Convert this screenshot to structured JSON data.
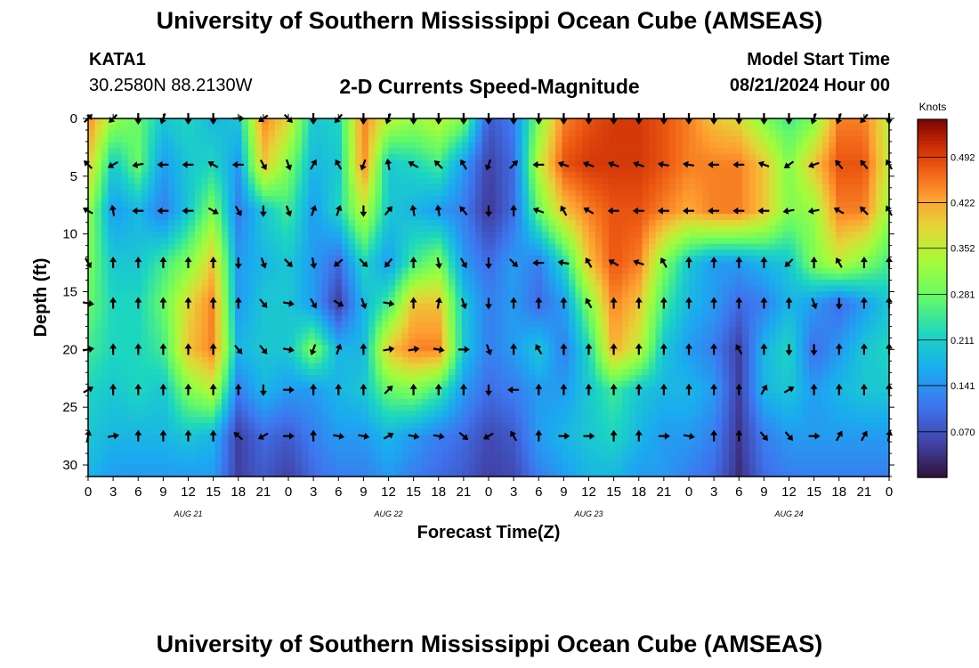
{
  "header": {
    "title": "University of Southern Mississippi Ocean Cube (AMSEAS)",
    "station_id": "KATA1",
    "coordinates": "30.2580N  88.2130W",
    "subtitle": "2-D Currents Speed-Magnitude",
    "model_start_label": "Model Start Time",
    "model_start_value": "08/21/2024 Hour 00"
  },
  "footer": {
    "title": "University of Southern Mississippi Ocean Cube (AMSEAS)"
  },
  "chart_data": {
    "type": "heatmap",
    "title": "2-D Currents Speed-Magnitude",
    "xlabel": "Forecast Time(Z)",
    "ylabel": "Depth (ft)",
    "x_range_hours": [
      0,
      96
    ],
    "ylim": [
      0,
      31
    ],
    "x_ticks": [
      "0",
      "3",
      "6",
      "9",
      "12",
      "15",
      "18",
      "21",
      "0",
      "3",
      "6",
      "9",
      "12",
      "15",
      "18",
      "21",
      "0",
      "3",
      "6",
      "9",
      "12",
      "15",
      "18",
      "21",
      "0",
      "3",
      "6",
      "9",
      "12",
      "15",
      "18",
      "21",
      "0"
    ],
    "date_labels": [
      {
        "label": "AUG 21",
        "hour": 12
      },
      {
        "label": "AUG 22",
        "hour": 36
      },
      {
        "label": "AUG 23",
        "hour": 60
      },
      {
        "label": "AUG 24",
        "hour": 84
      }
    ],
    "y_ticks": [
      0,
      5,
      10,
      15,
      20,
      25,
      30
    ],
    "colorbar": {
      "title": "Knots",
      "range": [
        0,
        0.55
      ],
      "tick_labels": [
        "0.492",
        "0.422",
        "0.352",
        "0.281",
        "0.211",
        "0.141",
        "0.070"
      ],
      "tick_values": [
        0.492,
        0.422,
        0.352,
        0.281,
        0.211,
        0.141,
        0.07
      ]
    },
    "depths_ft": [
      0,
      4,
      8,
      12.5,
      16,
      20,
      23.5,
      27.5,
      31
    ],
    "hours": [
      0,
      3,
      6,
      9,
      12,
      15,
      18,
      21,
      24,
      27,
      30,
      33,
      36,
      39,
      42,
      45,
      48,
      51,
      54,
      57,
      60,
      63,
      66,
      69,
      72,
      75,
      78,
      81,
      84,
      87,
      90,
      93,
      96
    ],
    "speed_knots": [
      [
        0.45,
        0.32,
        0.28,
        0.2,
        0.22,
        0.18,
        0.2,
        0.45,
        0.38,
        0.2,
        0.22,
        0.45,
        0.35,
        0.32,
        0.35,
        0.3,
        0.08,
        0.12,
        0.3,
        0.45,
        0.48,
        0.5,
        0.5,
        0.48,
        0.45,
        0.4,
        0.38,
        0.3,
        0.25,
        0.3,
        0.45,
        0.45,
        0.35
      ],
      [
        0.4,
        0.2,
        0.28,
        0.15,
        0.2,
        0.22,
        0.15,
        0.4,
        0.3,
        0.18,
        0.2,
        0.45,
        0.2,
        0.22,
        0.25,
        0.15,
        0.05,
        0.1,
        0.35,
        0.48,
        0.5,
        0.5,
        0.5,
        0.48,
        0.45,
        0.45,
        0.45,
        0.4,
        0.3,
        0.4,
        0.48,
        0.48,
        0.35
      ],
      [
        0.32,
        0.15,
        0.18,
        0.12,
        0.2,
        0.3,
        0.12,
        0.2,
        0.25,
        0.15,
        0.22,
        0.35,
        0.2,
        0.18,
        0.15,
        0.12,
        0.04,
        0.1,
        0.28,
        0.4,
        0.45,
        0.48,
        0.48,
        0.45,
        0.42,
        0.45,
        0.45,
        0.4,
        0.3,
        0.32,
        0.45,
        0.45,
        0.32
      ],
      [
        0.3,
        0.2,
        0.2,
        0.25,
        0.3,
        0.4,
        0.15,
        0.18,
        0.2,
        0.15,
        0.1,
        0.22,
        0.15,
        0.25,
        0.3,
        0.15,
        0.1,
        0.15,
        0.12,
        0.22,
        0.4,
        0.48,
        0.45,
        0.3,
        0.2,
        0.15,
        0.15,
        0.18,
        0.2,
        0.3,
        0.35,
        0.3,
        0.25
      ],
      [
        0.28,
        0.22,
        0.22,
        0.28,
        0.38,
        0.45,
        0.15,
        0.2,
        0.2,
        0.15,
        0.05,
        0.18,
        0.25,
        0.4,
        0.4,
        0.2,
        0.12,
        0.15,
        0.1,
        0.15,
        0.3,
        0.45,
        0.4,
        0.25,
        0.18,
        0.15,
        0.1,
        0.12,
        0.18,
        0.15,
        0.1,
        0.15,
        0.2
      ],
      [
        0.25,
        0.22,
        0.22,
        0.25,
        0.4,
        0.45,
        0.18,
        0.2,
        0.2,
        0.3,
        0.18,
        0.18,
        0.4,
        0.45,
        0.45,
        0.2,
        0.12,
        0.15,
        0.2,
        0.12,
        0.22,
        0.42,
        0.35,
        0.2,
        0.15,
        0.12,
        0.05,
        0.18,
        0.22,
        0.1,
        0.15,
        0.2,
        0.22
      ],
      [
        0.22,
        0.2,
        0.22,
        0.2,
        0.3,
        0.35,
        0.12,
        0.18,
        0.15,
        0.15,
        0.18,
        0.2,
        0.28,
        0.3,
        0.25,
        0.15,
        0.1,
        0.12,
        0.15,
        0.15,
        0.2,
        0.25,
        0.2,
        0.18,
        0.18,
        0.15,
        0.05,
        0.18,
        0.2,
        0.15,
        0.18,
        0.2,
        0.2
      ],
      [
        0.2,
        0.18,
        0.18,
        0.18,
        0.2,
        0.18,
        0.05,
        0.1,
        0.08,
        0.12,
        0.15,
        0.15,
        0.18,
        0.15,
        0.12,
        0.1,
        0.06,
        0.08,
        0.15,
        0.18,
        0.2,
        0.22,
        0.18,
        0.15,
        0.15,
        0.12,
        0.04,
        0.12,
        0.15,
        0.15,
        0.15,
        0.15,
        0.15
      ],
      [
        0.18,
        0.15,
        0.15,
        0.15,
        0.15,
        0.15,
        0.05,
        0.08,
        0.05,
        0.1,
        0.12,
        0.12,
        0.15,
        0.12,
        0.1,
        0.08,
        0.05,
        0.06,
        0.12,
        0.15,
        0.18,
        0.18,
        0.15,
        0.15,
        0.12,
        0.1,
        0.03,
        0.1,
        0.12,
        0.12,
        0.12,
        0.12,
        0.12
      ]
    ],
    "vector_depths_ft": [
      0,
      4,
      8,
      12.5,
      16,
      20,
      23.5,
      27.5
    ],
    "vector_direction_deg": [
      [
        45,
        225,
        180,
        200,
        180,
        180,
        90,
        235,
        135,
        180,
        220,
        180,
        200,
        180,
        180,
        180,
        180,
        180,
        180,
        180,
        180,
        180,
        180,
        180,
        180,
        180,
        180,
        180,
        180,
        200,
        200,
        220,
        180
      ],
      [
        315,
        240,
        260,
        270,
        270,
        300,
        270,
        150,
        160,
        30,
        330,
        200,
        350,
        300,
        315,
        330,
        200,
        45,
        270,
        290,
        290,
        290,
        290,
        280,
        280,
        270,
        270,
        290,
        235,
        250,
        320,
        320,
        330
      ],
      [
        300,
        350,
        270,
        270,
        270,
        120,
        150,
        180,
        160,
        20,
        20,
        180,
        40,
        350,
        350,
        320,
        180,
        0,
        290,
        330,
        300,
        270,
        270,
        270,
        270,
        270,
        270,
        270,
        260,
        260,
        300,
        315,
        330
      ],
      [
        150,
        0,
        0,
        0,
        0,
        0,
        180,
        160,
        135,
        170,
        230,
        135,
        220,
        0,
        170,
        150,
        180,
        135,
        270,
        280,
        330,
        300,
        290,
        330,
        0,
        0,
        0,
        0,
        225,
        0,
        330,
        0,
        0
      ],
      [
        100,
        0,
        0,
        0,
        0,
        0,
        0,
        140,
        100,
        150,
        120,
        160,
        100,
        0,
        10,
        160,
        180,
        0,
        0,
        0,
        330,
        0,
        0,
        0,
        0,
        0,
        0,
        0,
        0,
        160,
        180,
        0,
        0
      ],
      [
        80,
        0,
        0,
        0,
        0,
        0,
        140,
        140,
        100,
        200,
        20,
        0,
        80,
        80,
        100,
        90,
        160,
        0,
        330,
        0,
        0,
        0,
        0,
        0,
        0,
        0,
        330,
        0,
        180,
        180,
        0,
        0,
        0
      ],
      [
        60,
        0,
        0,
        0,
        0,
        0,
        0,
        180,
        90,
        0,
        0,
        0,
        45,
        0,
        0,
        0,
        180,
        270,
        0,
        0,
        0,
        0,
        0,
        0,
        0,
        0,
        0,
        30,
        60,
        0,
        0,
        0,
        0
      ],
      [
        10,
        80,
        0,
        0,
        0,
        0,
        310,
        240,
        90,
        0,
        100,
        100,
        60,
        100,
        100,
        130,
        240,
        330,
        0,
        90,
        90,
        0,
        0,
        90,
        100,
        0,
        0,
        140,
        140,
        90,
        30,
        30,
        10
      ]
    ]
  }
}
